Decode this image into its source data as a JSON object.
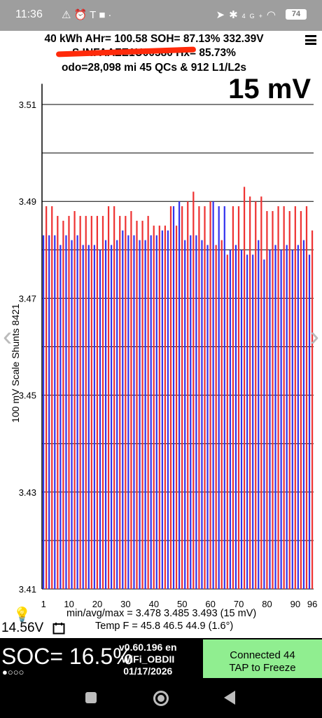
{
  "status_bar": {
    "time": "11:36",
    "left_icons": [
      "alert-icon",
      "alarm-icon",
      "tesla-icon",
      "stop-icon",
      "dot-icon"
    ],
    "right_icons": [
      "location-icon",
      "bluetooth-icon",
      "signal-icon",
      "wifi-icon"
    ],
    "signal_label": "4G+",
    "battery": "74"
  },
  "header": {
    "line1": "40 kWh  AHr= 100.58  SOH= 87.13%   332.39V",
    "line2": "S INFAAZE1U00580           Hx= 85.73%",
    "line3": "odo=28,098 mi 45 QCs & 912 L1/L2s"
  },
  "scale_label": "15 mV",
  "chart_data": {
    "type": "bar",
    "ylabel": "100 mV Scale  Shunts 8421",
    "ylim": [
      3.41,
      3.515
    ],
    "yticks": [
      "3.51",
      "3.49",
      "3.47",
      "3.45",
      "3.43",
      "3.41"
    ],
    "xticks": [
      "1",
      "10",
      "20",
      "30",
      "40",
      "50",
      "60",
      "70",
      "80",
      "90",
      "96"
    ],
    "colors": {
      "odd": "#3333ee",
      "even": "#ee3333"
    },
    "values": [
      3.483,
      3.489,
      3.483,
      3.489,
      3.483,
      3.487,
      3.481,
      3.486,
      3.483,
      3.487,
      3.482,
      3.488,
      3.483,
      3.487,
      3.481,
      3.487,
      3.481,
      3.487,
      3.481,
      3.487,
      3.48,
      3.487,
      3.482,
      3.489,
      3.481,
      3.489,
      3.482,
      3.487,
      3.484,
      3.487,
      3.483,
      3.488,
      3.483,
      3.486,
      3.482,
      3.486,
      3.482,
      3.487,
      3.483,
      3.485,
      3.483,
      3.485,
      3.484,
      3.485,
      3.484,
      3.489,
      3.489,
      3.485,
      3.49,
      3.489,
      3.482,
      3.49,
      3.483,
      3.492,
      3.483,
      3.489,
      3.482,
      3.489,
      3.481,
      3.49,
      3.49,
      3.481,
      3.489,
      3.482,
      3.489,
      3.479,
      3.48,
      3.489,
      3.481,
      3.489,
      3.48,
      3.493,
      3.479,
      3.491,
      3.479,
      3.49,
      3.482,
      3.491,
      3.478,
      3.488,
      3.48,
      3.488,
      3.481,
      3.489,
      3.48,
      3.489,
      3.481,
      3.488,
      3.48,
      3.489,
      3.481,
      3.488,
      3.482,
      3.489,
      3.479,
      3.484
    ]
  },
  "stats": {
    "line1": "min/avg/max = 3.478 3.485 3.493  (15 mV)",
    "line2": "Temp F = 45.8  46.5  44.9  (1.6°)"
  },
  "voltage": "14.56V",
  "soc": "SOC= 16.5%",
  "dots": "●○○○",
  "version": {
    "line1": "v0.60.196 en",
    "line2": "WiFi_OBDII",
    "line3": "01/17/2026"
  },
  "connected": {
    "line1": "Connected 44",
    "line2": "TAP to Freeze"
  }
}
